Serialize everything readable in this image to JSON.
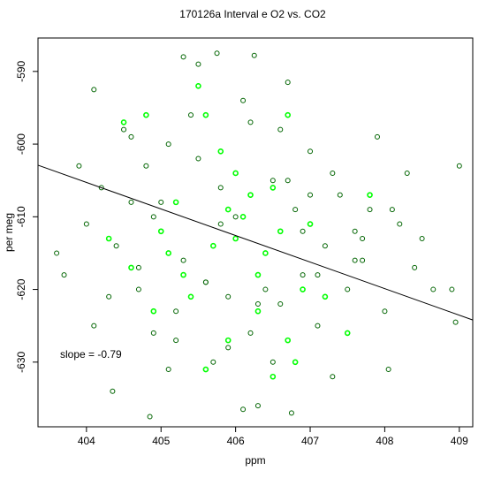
{
  "chart_data": {
    "type": "scatter",
    "title": "170126a   Interval e O2 vs. CO2",
    "x_label": "ppm",
    "y_label": "per meg",
    "annotation": "slope =  -0.79",
    "xlim": [
      403.35,
      409.18
    ],
    "ylim": [
      -638.9,
      -585.4
    ],
    "xticks": [
      404,
      405,
      406,
      407,
      408,
      409
    ],
    "yticks": [
      -590,
      -600,
      -610,
      -620,
      -630
    ],
    "fit_line": {
      "color": "#000000",
      "x": [
        403.35,
        409.18
      ],
      "y": [
        -602.9,
        -624.2
      ]
    },
    "series": [
      {
        "color": "#006400",
        "x": [
          403.6,
          403.7,
          404.1,
          404.35,
          404.85,
          405.3,
          405.5,
          405.75,
          406.25,
          406.3,
          406.1,
          406.75,
          406.7,
          407.9,
          408.3,
          408.05,
          408.9,
          408.95,
          409.0,
          408.65,
          407.3,
          403.9,
          404.0,
          404.2,
          404.3,
          404.5,
          404.6,
          404.7,
          404.8,
          404.9,
          405.0,
          405.1,
          405.2,
          405.4,
          405.6,
          405.8,
          405.9,
          406.0,
          406.2,
          406.4,
          406.5,
          406.6,
          406.8,
          406.9,
          407.0,
          407.1,
          407.2,
          407.4,
          407.5,
          407.6,
          407.7,
          407.8,
          408.0,
          408.2,
          408.4,
          408.5,
          404.1,
          404.4,
          404.7,
          405.0,
          405.3,
          405.5,
          405.7,
          405.9,
          406.1,
          406.3,
          406.5,
          406.7,
          406.9,
          407.1,
          407.3,
          407.5,
          407.7,
          408.1,
          404.6,
          405.2,
          405.8,
          406.4,
          407.0,
          407.6,
          405.1,
          406.0,
          406.6,
          404.9,
          405.6,
          406.2
        ],
        "y": [
          -615,
          -618,
          -592.5,
          -634,
          -637.5,
          -588,
          -589,
          -587.5,
          -587.8,
          -636,
          -636.5,
          -637,
          -591.5,
          -599,
          -604,
          -631,
          -620,
          -624.5,
          -603,
          -620,
          -632,
          -603,
          -611,
          -606,
          -621,
          -598,
          -608,
          -617,
          -603,
          -626,
          -612,
          -600,
          -623,
          -596,
          -619,
          -606,
          -628,
          -610,
          -597,
          -615,
          -605,
          -622,
          -609,
          -618,
          -601,
          -625,
          -614,
          -607,
          -620,
          -612,
          -616,
          -609,
          -623,
          -611,
          -617,
          -613,
          -625,
          -614,
          -620,
          -608,
          -616,
          -602,
          -630,
          -621,
          -594,
          -622,
          -630,
          -605,
          -612,
          -618,
          -604,
          -626,
          -613,
          -609,
          -599,
          -627,
          -611,
          -620,
          -607,
          -616,
          -631,
          -604,
          -598,
          -610,
          -619,
          -626
        ]
      },
      {
        "color": "#00ff00",
        "x": [
          404.3,
          404.5,
          404.6,
          404.8,
          404.9,
          405.0,
          405.2,
          405.3,
          405.4,
          405.5,
          405.6,
          405.7,
          405.8,
          405.9,
          406.0,
          406.1,
          406.2,
          406.3,
          406.4,
          406.5,
          406.6,
          406.7,
          406.8,
          406.9,
          407.0,
          407.2,
          407.5,
          407.8,
          405.6,
          406.0,
          405.1,
          406.5,
          406.7,
          405.9,
          406.3
        ],
        "y": [
          -613,
          -597,
          -617,
          -596,
          -623,
          -612,
          -608,
          -618,
          -621,
          -592,
          -596,
          -614,
          -601,
          -627,
          -604,
          -610,
          -607,
          -623,
          -615,
          -606,
          -612,
          -627,
          -630,
          -620,
          -611,
          -621,
          -626,
          -607,
          -631,
          -613,
          -615,
          -632,
          -596,
          -609,
          -618
        ]
      }
    ]
  }
}
